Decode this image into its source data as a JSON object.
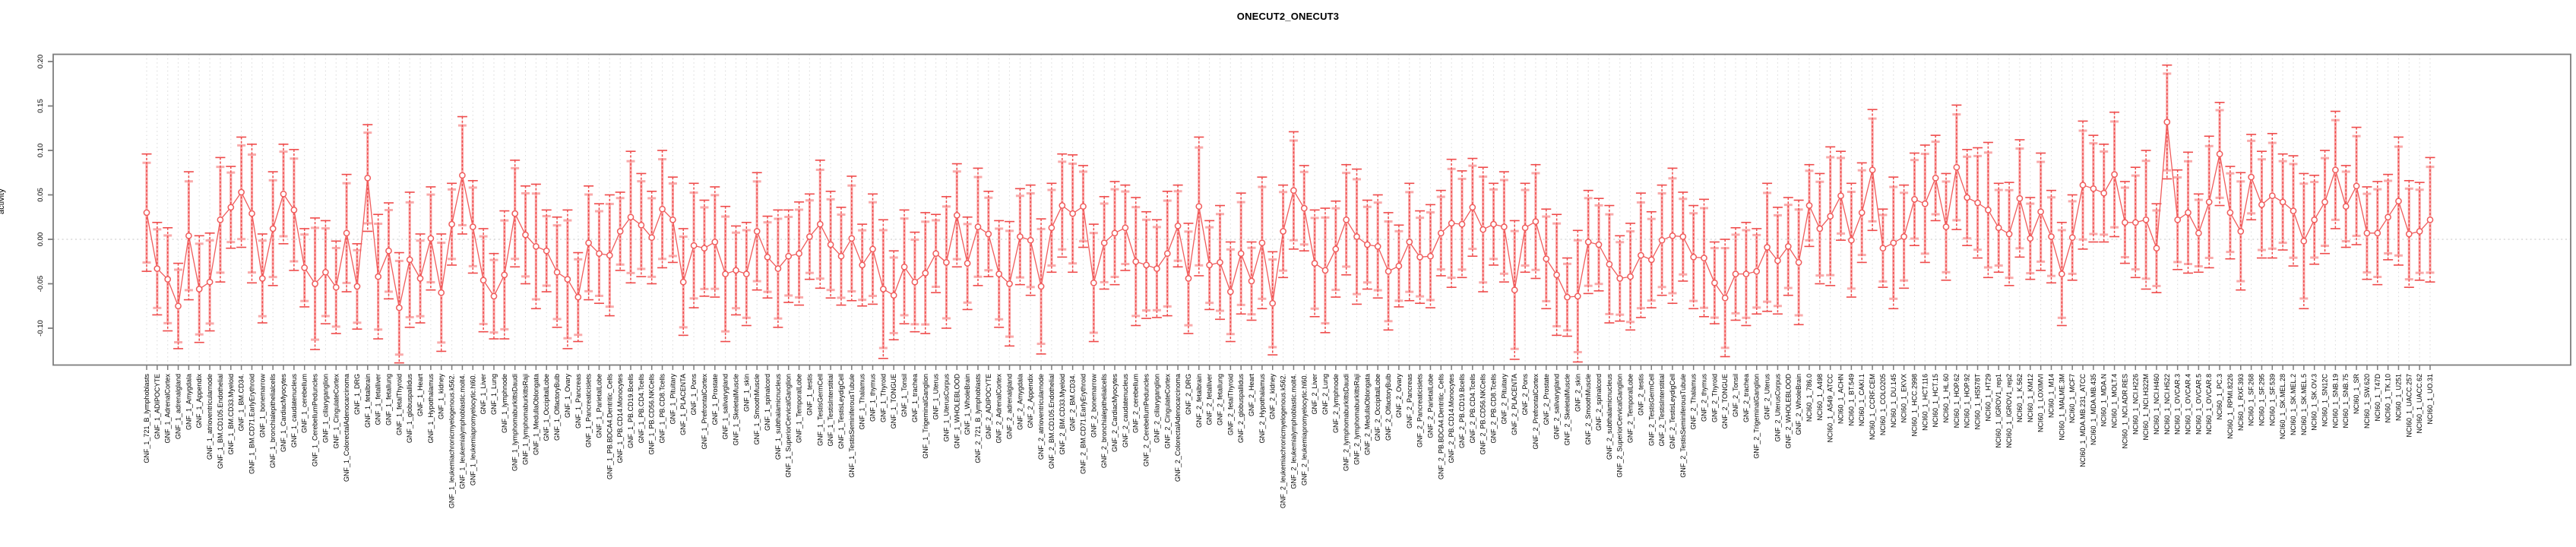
{
  "figure": {
    "title": "ONECUT2_ONECUT3",
    "ylabel": "activity"
  },
  "style": {
    "colors": {
      "series": "#f05c5c",
      "inner_error_bar": "#ef4b4b",
      "outer_error_bar": "#f9abab",
      "marker_fill": "#ffffff",
      "grid": "#dcdcdc",
      "zero_line": "#d8d8d8",
      "frame": "#7d7d7d",
      "tick": "#7d7d7d",
      "text": "#000000",
      "background": "#ffffff"
    }
  },
  "chart_data": {
    "type": "line",
    "title": "ONECUT2_ONECUT3",
    "xlabel": "",
    "ylabel": "activity",
    "ylim": [
      -0.135,
      0.215
    ],
    "yticks": [
      0.2,
      0.15,
      0.1,
      0.05,
      0.0,
      -0.05,
      -0.1
    ],
    "ytick_labels": [
      "0.20",
      "0.15",
      "0.10",
      "0.05",
      "0.00",
      "-0.05",
      "-0.10"
    ],
    "grid": "dotted vertical gridline at every category; dotted horizontal line at y=0",
    "legend": null,
    "marker": "open-circle",
    "error_bars": "each point has nested intervals: thin dashed red bar with caps and thicker light-pink bar with caps",
    "categories": [
      "GNF_1_721_B_lymphoblasts",
      "GNF_1_ADIPOCYTE",
      "GNF_1_AdrenalCortex",
      "GNF_1_adrenalgland",
      "GNF_1_Amygdala",
      "GNF_1_Appendix",
      "GNF_1_atrioventricularnode",
      "GNF_1_BM.CD105.Endothelial",
      "GNF_1_BM.CD33.Myeloid",
      "GNF_1_BM.CD34.",
      "GNF_1_BM.CD71.EarlyErythroid",
      "GNF_1_bonemarrow",
      "GNF_1_bronchialepithelialcells",
      "GNF_1_CardiacMyocytes",
      "GNF_1_caudatenucleus",
      "GNF_1_cerebellum",
      "GNF_1_CerebellumPeduncles",
      "GNF_1_ciliaryganglion",
      "GNF_1_CingulateCortex",
      "GNF_1_ColorectalAdenocarcinoma",
      "GNF_1_DRG",
      "GNF_1_fetalbrain",
      "GNF_1_fetalliver",
      "GNF_1_fetallung",
      "GNF_1_fetalThyroid",
      "GNF_1_globuspallidus",
      "GNF_1_Heart",
      "GNF_1_Hypothalamus",
      "GNF_1_kidney",
      "GNF_1_leukemiachronicmyelogenous.k562.",
      "GNF_1_leukemialymphoblastic.molt4.",
      "GNF_1_leukemiapromyelocytic.hl60.",
      "GNF_1_Liver",
      "GNF_1_Lung",
      "GNF_1_lymphnode",
      "GNF_1_lymphomaburkittsDaudi",
      "GNF_1_lymphomaburkittsRaji",
      "GNF_1_MedullaOblongata",
      "GNF_1_OccipitalLobe",
      "GNF_1_OlfactoryBulb",
      "GNF_1_Ovary",
      "GNF_1_Pancreas",
      "GNF_1_Pancreaticislets",
      "GNF_1_ParietalLobe",
      "GNF_1_PB.BDCA4.Dentritic_Cells",
      "GNF_1_PB.CD14.Monocytes",
      "GNF_1_PB.CD19.Bcells",
      "GNF_1_PB.CD4.Tcells",
      "GNF_1_PB.CD56.NKCells",
      "GNF_1_PB.CD8.Tcells",
      "GNF_1_Pituitary",
      "GNF_1_PLACENTA",
      "GNF_1_Pons",
      "GNF_1_PrefrontalCortex",
      "GNF_1_Prostate",
      "GNF_1_salivarygland",
      "GNF_1_SkeletalMuscle",
      "GNF_1_skin",
      "GNF_1_SmoothMuscle",
      "GNF_1_spinalcord",
      "GNF_1_subthalamicnucleus",
      "GNF_1_SuperiorCervicalGanglion",
      "GNF_1_TemporalLobe",
      "GNF_1_testis",
      "GNF_1_TestisGermCell",
      "GNF_1_TestisInterstitial",
      "GNF_1_TestisLeydigCell",
      "GNF_1_TestisSeminiferousTubule",
      "GNF_1_Thalamus",
      "GNF_1_thymus",
      "GNF_1_Thyroid",
      "GNF_1_TONGUE",
      "GNF_1_Tonsil",
      "GNF_1_trachea",
      "GNF_1_TrigeminalGanglion",
      "GNF_1_Uterus",
      "GNF_1_UterusCorpus",
      "GNF_1_WHOLEBLOOD",
      "GNF_1_WholeBrain",
      "GNF_2_721_B_lymphoblasts",
      "GNF_2_ADIPOCYTE",
      "GNF_2_AdrenalCortex",
      "GNF_2_adrenalgland",
      "GNF_2_Amygdala",
      "GNF_2_Appendix",
      "GNF_2_atrioventricularnode",
      "GNF_2_BM.CD105.Endothelial",
      "GNF_2_BM.CD33.Myeloid",
      "GNF_2_BM.CD34.",
      "GNF_2_BM.CD71.EarlyErythroid",
      "GNF_2_bonemarrow",
      "GNF_2_bronchialepithelialcells",
      "GNF_2_CardiacMyocytes",
      "GNF_2_caudatenucleus",
      "GNF_2_cerebellum",
      "GNF_2_CerebellumPeduncles",
      "GNF_2_ciliaryganglion",
      "GNF_2_CingulateCortex",
      "GNF_2_ColorectalAdenocarcinoma",
      "GNF_2_DRG",
      "GNF_2_fetalbrain",
      "GNF_2_fetalliver",
      "GNF_2_fetallung",
      "GNF_2_fetalThyroid",
      "GNF_2_globuspallidus",
      "GNF_2_Heart",
      "GNF_2_Hypothalamus",
      "GNF_2_kidney",
      "GNF_2_leukemiachronicmyelogenous.k562.",
      "GNF_2_leukemialymphoblastic.molt4.",
      "GNF_2_leukemiapromyelocytic.hl60.",
      "GNF_2_Liver",
      "GNF_2_Lung",
      "GNF_2_lymphnode",
      "GNF_2_lymphomaburkittsDaudi",
      "GNF_2_lymphomaburkittsRaji",
      "GNF_2_MedullaOblongata",
      "GNF_2_OccipitalLobe",
      "GNF_2_OlfactoryBulb",
      "GNF_2_Ovary",
      "GNF_2_Pancreas",
      "GNF_2_Pancreaticislets",
      "GNF_2_ParietalLobe",
      "GNF_2_PB.BDCA4.Dentritic_Cells",
      "GNF_2_PB.CD14.Monocytes",
      "GNF_2_PB.CD19.Bcells",
      "GNF_2_PB.CD4.Tcells",
      "GNF_2_PB.CD56.NKCells",
      "GNF_2_PB.CD8.Tcells",
      "GNF_2_Pituitary",
      "GNF_2_PLACENTA",
      "GNF_2_Pons",
      "GNF_2_PrefrontalCortex",
      "GNF_2_Prostate",
      "GNF_2_salivarygland",
      "GNF_2_SkeletalMuscle",
      "GNF_2_skin",
      "GNF_2_SmoothMuscle",
      "GNF_2_spinalcord",
      "GNF_2_subthalamicnucleus",
      "GNF_2_SuperiorCervicalGanglion",
      "GNF_2_TemporalLobe",
      "GNF_2_testis",
      "GNF_2_TestisGermCell",
      "GNF_2_TestisInterstitial",
      "GNF_2_TestisLeydigCell",
      "GNF_2_TestisSeminiferousTubule",
      "GNF_2_Thalamus",
      "GNF_2_thymus",
      "GNF_2_Thyroid",
      "GNF_2_TONGUE",
      "GNF_2_Tonsil",
      "GNF_2_trachea",
      "GNF_2_TrigeminalGanglion",
      "GNF_2_Uterus",
      "GNF_2_UterusCorpus",
      "GNF_2_WHOLEBLOOD",
      "GNF_2_WholeBrain",
      "NCI60_1_786.0",
      "NCI60_1_A498",
      "NCI60_1_A549_ATCC",
      "NCI60_1_ACHN",
      "NCI60_1_BT.549",
      "NCI60_1_CAKI.1",
      "NCI60_1_CCRF.CEM",
      "NCI60_1_COLO205",
      "NCI60_1_DU.145",
      "NCI60_1_EKVX",
      "NCI60_1_HCC.2998",
      "NCI60_1_HCT.116",
      "NCI60_1_HCT.15",
      "NCI60_1_HL.60",
      "NCI60_1_HOP.62",
      "NCI60_1_HOP.92",
      "NCI60_1_HS578T",
      "NCI60_1_HT29",
      "NCI60_1_IGROV1_rep1",
      "NCI60_1_IGROV1_rep2",
      "NCI60_1_K.562",
      "NCI60_1_KM12",
      "NCI60_1_LOXIMVI",
      "NCI60_1_M14",
      "NCI60_1_MALME.3M",
      "NCI60_1_MCF7",
      "NCI60_1_MDA.MB.231_ATCC",
      "NCI60_1_MDA.MB.435",
      "NCI60_1_MDA.N",
      "NCI60_1_MOLT.4",
      "NCI60_1_NCI.ADR.RES",
      "NCI60_1_NCI.H226",
      "NCI60_1_NCI.H322M",
      "NCI60_1_NCI.H460",
      "NCI60_1_NCI.H522",
      "NCI60_1_OVCAR.3",
      "NCI60_1_OVCAR.4",
      "NCI60_1_OVCAR.5",
      "NCI60_1_OVCAR.8",
      "NCI60_1_PC.3",
      "NCI60_1_RPMI.8226",
      "NCI60_1_RXF.393",
      "NCI60_1_SF.268",
      "NCI60_1_SF.295",
      "NCI60_1_SF.539",
      "NCI60_1_SK.MEL.28",
      "NCI60_1_SK.MEL.2",
      "NCI60_1_SK.MEL.5",
      "NCI60_1_SK.OV.3",
      "NCI60_1_SN12C",
      "NCI60_1_SNB.19",
      "NCI60_1_SNB.75",
      "NCI60_1_SR",
      "NCI60_1_SW.620",
      "NCI60_1_T47D",
      "NCI60_1_TK.10",
      "NCI60_1_U251",
      "NCI60_1_UACC.257",
      "NCI60_1_UACC.62",
      "NCI60_1_UO.31"
    ],
    "values": [
      0.03,
      -0.033,
      -0.045,
      -0.075,
      0.004,
      -0.056,
      -0.048,
      0.022,
      0.036,
      0.053,
      0.029,
      -0.044,
      0.012,
      0.051,
      0.033,
      -0.032,
      -0.05,
      -0.037,
      -0.054,
      0.007,
      -0.053,
      0.069,
      -0.042,
      -0.013,
      -0.077,
      -0.023,
      -0.044,
      0.001,
      -0.06,
      0.017,
      0.072,
      0.014,
      -0.046,
      -0.064,
      -0.04,
      0.029,
      0.005,
      -0.008,
      -0.013,
      -0.037,
      -0.045,
      -0.065,
      -0.004,
      -0.016,
      -0.018,
      0.009,
      0.025,
      0.016,
      0.002,
      0.034,
      0.022,
      -0.048,
      -0.007,
      -0.01,
      -0.003,
      -0.039,
      -0.035,
      -0.039,
      0.009,
      -0.02,
      -0.033,
      -0.019,
      -0.016,
      0.003,
      0.017,
      -0.006,
      -0.019,
      0.001,
      -0.029,
      -0.011,
      -0.056,
      -0.063,
      -0.031,
      -0.048,
      -0.038,
      -0.016,
      -0.026,
      0.027,
      -0.027,
      0.014,
      0.006,
      -0.039,
      -0.05,
      0.003,
      -0.001,
      -0.053,
      0.013,
      0.038,
      0.029,
      0.037,
      -0.049,
      -0.004,
      0.007,
      0.013,
      -0.025,
      -0.029,
      -0.033,
      -0.016,
      0.015,
      -0.044,
      0.037,
      -0.029,
      -0.026,
      -0.059,
      -0.016,
      -0.047,
      -0.004,
      -0.072,
      0.009,
      0.055,
      0.035,
      -0.027,
      -0.035,
      -0.011,
      0.022,
      0.003,
      -0.006,
      -0.008,
      -0.036,
      -0.03,
      -0.003,
      -0.02,
      -0.019,
      0.007,
      0.018,
      0.017,
      0.036,
      0.011,
      0.017,
      0.014,
      -0.057,
      0.013,
      0.02,
      -0.022,
      -0.04,
      -0.065,
      -0.064,
      -0.003,
      -0.006,
      -0.028,
      -0.044,
      -0.042,
      -0.018,
      -0.023,
      -0.001,
      0.004,
      0.003,
      -0.02,
      -0.021,
      -0.049,
      -0.066,
      -0.039,
      -0.039,
      -0.036,
      -0.009,
      -0.024,
      -0.008,
      -0.026,
      0.038,
      0.012,
      0.026,
      0.049,
      -0.001,
      0.03,
      0.078,
      -0.01,
      -0.004,
      0.003,
      0.045,
      0.04,
      0.069,
      0.014,
      0.081,
      0.047,
      0.041,
      0.033,
      0.013,
      0.006,
      0.046,
      0.001,
      0.031,
      0.003,
      -0.039,
      0.002,
      0.061,
      0.057,
      0.052,
      0.073,
      0.019,
      0.019,
      0.022,
      -0.01,
      0.132,
      0.022,
      0.03,
      0.007,
      0.042,
      0.096,
      0.03,
      0.009,
      0.07,
      0.039,
      0.049,
      0.042,
      0.032,
      -0.002,
      0.022,
      0.042,
      0.078,
      0.037,
      0.06,
      0.007,
      0.007,
      0.025,
      0.043,
      0.006,
      0.009,
      0.022
    ],
    "errors": [
      0.066,
      0.052,
      0.058,
      0.048,
      0.072,
      0.06,
      0.055,
      0.07,
      0.046,
      0.062,
      0.078,
      0.05,
      0.064,
      0.056,
      0.068,
      0.044,
      0.074,
      0.058,
      0.052,
      0.066,
      0.048,
      0.06,
      0.07,
      0.054,
      0.062,
      0.076,
      0.05,
      0.058,
      0.066,
      0.046,
      0.066,
      0.052,
      0.058,
      0.048,
      0.072,
      0.06,
      0.055,
      0.07,
      0.046,
      0.062,
      0.078,
      0.05,
      0.064,
      0.056,
      0.068,
      0.044,
      0.074,
      0.058,
      0.052,
      0.066,
      0.048,
      0.06,
      0.07,
      0.054,
      0.062,
      0.076,
      0.05,
      0.058,
      0.066,
      0.046,
      0.066,
      0.052,
      0.058,
      0.048,
      0.072,
      0.06,
      0.055,
      0.07,
      0.046,
      0.062,
      0.078,
      0.05,
      0.064,
      0.056,
      0.068,
      0.044,
      0.074,
      0.058,
      0.052,
      0.066,
      0.048,
      0.06,
      0.07,
      0.054,
      0.062,
      0.076,
      0.05,
      0.058,
      0.066,
      0.046,
      0.066,
      0.052,
      0.058,
      0.048,
      0.072,
      0.06,
      0.055,
      0.07,
      0.046,
      0.062,
      0.078,
      0.05,
      0.064,
      0.056,
      0.068,
      0.044,
      0.074,
      0.058,
      0.052,
      0.066,
      0.048,
      0.06,
      0.07,
      0.054,
      0.062,
      0.076,
      0.05,
      0.058,
      0.066,
      0.046,
      0.066,
      0.052,
      0.058,
      0.048,
      0.072,
      0.06,
      0.055,
      0.07,
      0.046,
      0.062,
      0.078,
      0.05,
      0.064,
      0.056,
      0.068,
      0.044,
      0.074,
      0.058,
      0.052,
      0.066,
      0.048,
      0.06,
      0.07,
      0.054,
      0.062,
      0.076,
      0.05,
      0.058,
      0.066,
      0.046,
      0.066,
      0.052,
      0.058,
      0.048,
      0.072,
      0.06,
      0.055,
      0.07,
      0.046,
      0.062,
      0.078,
      0.05,
      0.064,
      0.056,
      0.068,
      0.044,
      0.074,
      0.058,
      0.052,
      0.066,
      0.048,
      0.06,
      0.07,
      0.054,
      0.062,
      0.076,
      0.05,
      0.058,
      0.066,
      0.046,
      0.066,
      0.052,
      0.058,
      0.048,
      0.072,
      0.06,
      0.055,
      0.07,
      0.046,
      0.062,
      0.078,
      0.05,
      0.064,
      0.056,
      0.068,
      0.044,
      0.074,
      0.058,
      0.052,
      0.066,
      0.048,
      0.06,
      0.07,
      0.054,
      0.062,
      0.076,
      0.05,
      0.058,
      0.066,
      0.046,
      0.066,
      0.052,
      0.058,
      0.048,
      0.072,
      0.06,
      0.055,
      0.07
    ]
  }
}
